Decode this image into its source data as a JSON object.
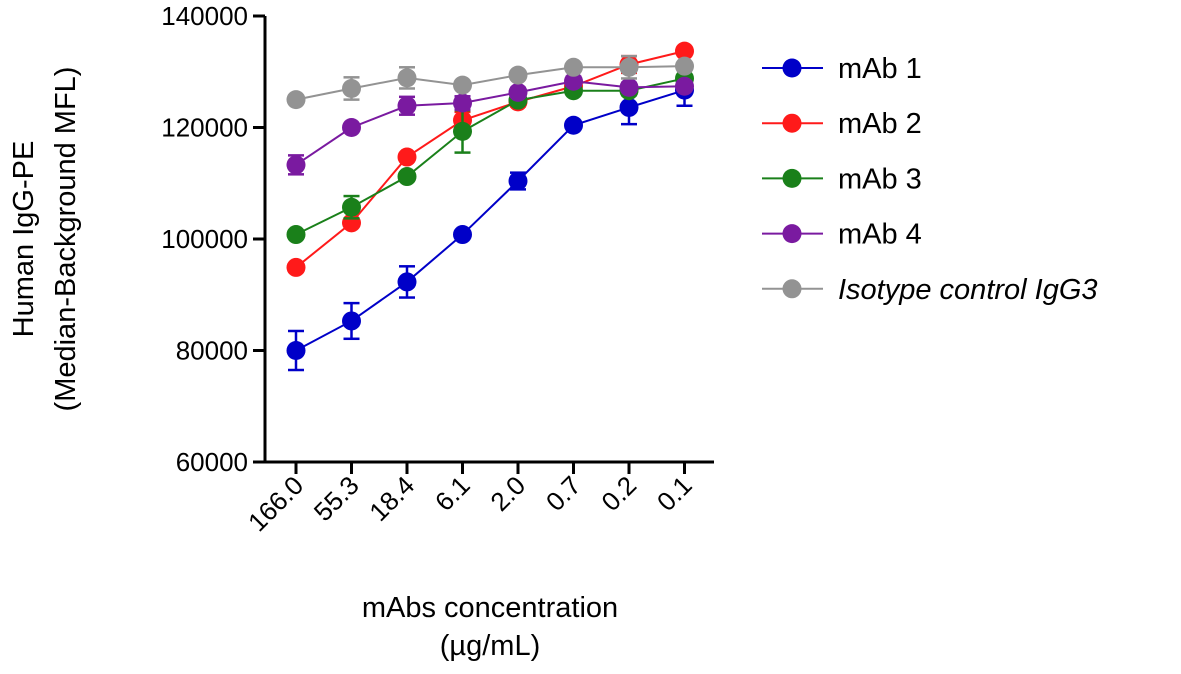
{
  "chart_data": {
    "type": "line",
    "title": "",
    "xlabel": [
      "mAbs concentration",
      "(µg/mL)"
    ],
    "ylabel": [
      "Human IgG-PE",
      "(Median-Background MFL)"
    ],
    "categories": [
      "166.0",
      "55.3",
      "18.4",
      "6.1",
      "2.0",
      "0.7",
      "0.2",
      "0.1"
    ],
    "ylim": [
      60000,
      140000
    ],
    "yticks": [
      60000,
      80000,
      100000,
      120000,
      140000
    ],
    "ytick_labels": [
      "60000",
      "80000",
      "100000",
      "120000",
      "140000"
    ],
    "grid": false,
    "legend_position": "right",
    "series": [
      {
        "name": "mAb 1",
        "italic": false,
        "color": "#0000c8",
        "values": [
          80000,
          85300,
          92300,
          100800,
          110400,
          120400,
          123600,
          126700
        ],
        "errors": [
          3500,
          3200,
          2800,
          500,
          1500,
          500,
          3000,
          2800
        ]
      },
      {
        "name": "mAb 2",
        "italic": false,
        "color": "#ff1a1a",
        "values": [
          94900,
          102900,
          114700,
          121300,
          124600,
          127400,
          131300,
          133700
        ],
        "errors": [
          400,
          500,
          500,
          1500,
          800,
          600,
          1500,
          600
        ]
      },
      {
        "name": "mAb 3",
        "italic": false,
        "color": "#1a801a",
        "values": [
          100800,
          105700,
          111200,
          119300,
          124900,
          126600,
          126600,
          128800
        ],
        "errors": [
          500,
          2000,
          600,
          3800,
          700,
          700,
          800,
          700
        ]
      },
      {
        "name": "mAb 4",
        "italic": false,
        "color": "#7a1aa0",
        "values": [
          113300,
          120000,
          123900,
          124400,
          126300,
          128300,
          127200,
          127400
        ],
        "errors": [
          1700,
          600,
          1600,
          1200,
          800,
          800,
          800,
          700
        ]
      },
      {
        "name": "Isotype control IgG3",
        "italic": true,
        "color": "#939393",
        "values": [
          125000,
          127000,
          128900,
          127600,
          129400,
          130800,
          130800,
          131000
        ],
        "errors": [
          500,
          2000,
          1900,
          600,
          500,
          500,
          2000,
          500
        ]
      }
    ]
  }
}
